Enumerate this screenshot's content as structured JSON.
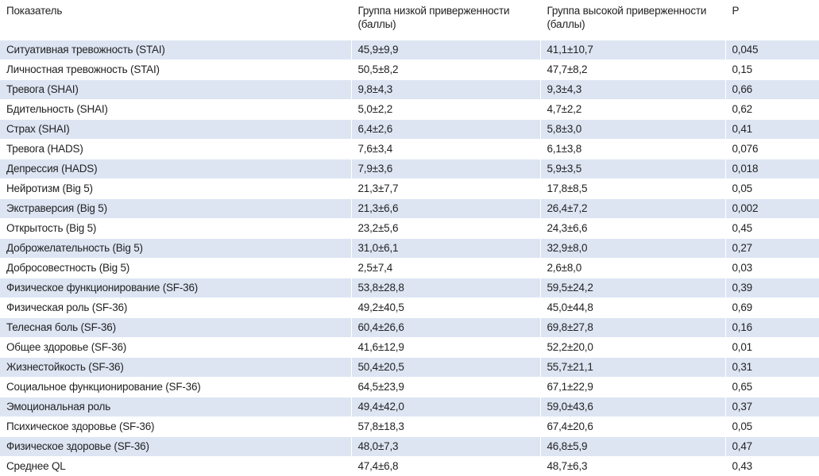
{
  "table": {
    "headers": [
      "Показатель",
      "Группа низкой приверженности (баллы)",
      "Группа высокой приверженности (баллы)",
      "P"
    ],
    "rows": [
      [
        "Ситуативная тревожность (STAI)",
        "45,9±9,9",
        "41,1±10,7",
        "0,045"
      ],
      [
        "Личностная тревожность (STAI)",
        "50,5±8,2",
        "47,7±8,2",
        "0,15"
      ],
      [
        "Тревога (SHAI)",
        "9,8±4,3",
        "9,3±4,3",
        "0,66"
      ],
      [
        "Бдительность (SHAI)",
        "5,0±2,2",
        "4,7±2,2",
        "0,62"
      ],
      [
        "Страх (SHAI)",
        "6,4±2,6",
        "5,8±3,0",
        "0,41"
      ],
      [
        "Тревога (HADS)",
        "7,6±3,4",
        "6,1±3,8",
        "0,076"
      ],
      [
        "Депрессия (HADS)",
        "7,9±3,6",
        "5,9±3,5",
        "0,018"
      ],
      [
        "Нейротизм (Big 5)",
        "21,3±7,7",
        "17,8±8,5",
        "0,05"
      ],
      [
        "Экстраверсия (Big 5)",
        "21,3±6,6",
        "26,4±7,2",
        "0,002"
      ],
      [
        "Открытость (Big 5)",
        "23,2±5,6",
        "24,3±6,6",
        "0,45"
      ],
      [
        "Доброжелательность (Big 5)",
        "31,0±6,1",
        "32,9±8,0",
        "0,27"
      ],
      [
        "Добросовестность (Big 5)",
        "2,5±7,4",
        "2,6±8,0",
        "0,03"
      ],
      [
        "Физическое функционирование (SF-36)",
        "53,8±28,8",
        "59,5±24,2",
        "0,39"
      ],
      [
        "Физическая роль (SF-36)",
        "49,2±40,5",
        "45,0±44,8",
        "0,69"
      ],
      [
        "Телесная боль (SF-36)",
        "60,4±26,6",
        "69,8±27,8",
        "0,16"
      ],
      [
        "Общее здоровье (SF-36)",
        "41,6±12,9",
        "52,2±20,0",
        "0,01"
      ],
      [
        "Жизнестойкость (SF-36)",
        "50,4±20,5",
        "55,7±21,1",
        "0,31"
      ],
      [
        "Социальное функционирование (SF-36)",
        "64,5±23,9",
        "67,1±22,9",
        "0,65"
      ],
      [
        "Эмоциональная роль",
        "49,4±42,0",
        "59,0±43,6",
        "0,37"
      ],
      [
        "Психическое здоровье (SF-36)",
        "57,8±18,3",
        "67,4±20,6",
        "0,05"
      ],
      [
        "Физическое здоровье (SF-36)",
        "48,0±7,3",
        "46,8±5,9",
        "0,47"
      ],
      [
        "Среднее QL",
        "47,4±6,8",
        "48,7±6,3",
        "0,43"
      ]
    ]
  }
}
